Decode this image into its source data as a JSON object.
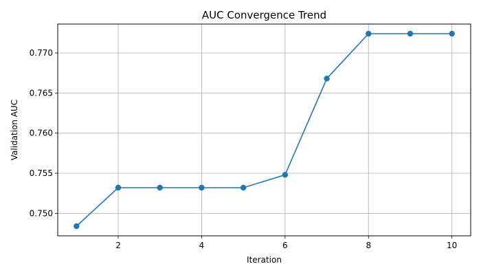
{
  "chart_data": {
    "type": "line",
    "title": "AUC Convergence Trend",
    "xlabel": "Iteration",
    "ylabel": "Validation AUC",
    "xlim": [
      0.55,
      10.45
    ],
    "ylim": [
      0.7472,
      0.7736
    ],
    "xticks": [
      2,
      4,
      6,
      8,
      10
    ],
    "xtick_labels": [
      "2",
      "4",
      "6",
      "8",
      "10"
    ],
    "yticks": [
      0.75,
      0.755,
      0.76,
      0.765,
      0.77
    ],
    "ytick_labels": [
      "0.750",
      "0.755",
      "0.760",
      "0.765",
      "0.770"
    ],
    "grid": true,
    "series": [
      {
        "color": "#1f77b4",
        "marker": "circle",
        "x": [
          1,
          2,
          3,
          4,
          5,
          6,
          7,
          8,
          9,
          10
        ],
        "y": [
          0.7484,
          0.7532,
          0.7532,
          0.7532,
          0.7532,
          0.7548,
          0.7668,
          0.7724,
          0.7724,
          0.7724
        ]
      }
    ]
  }
}
